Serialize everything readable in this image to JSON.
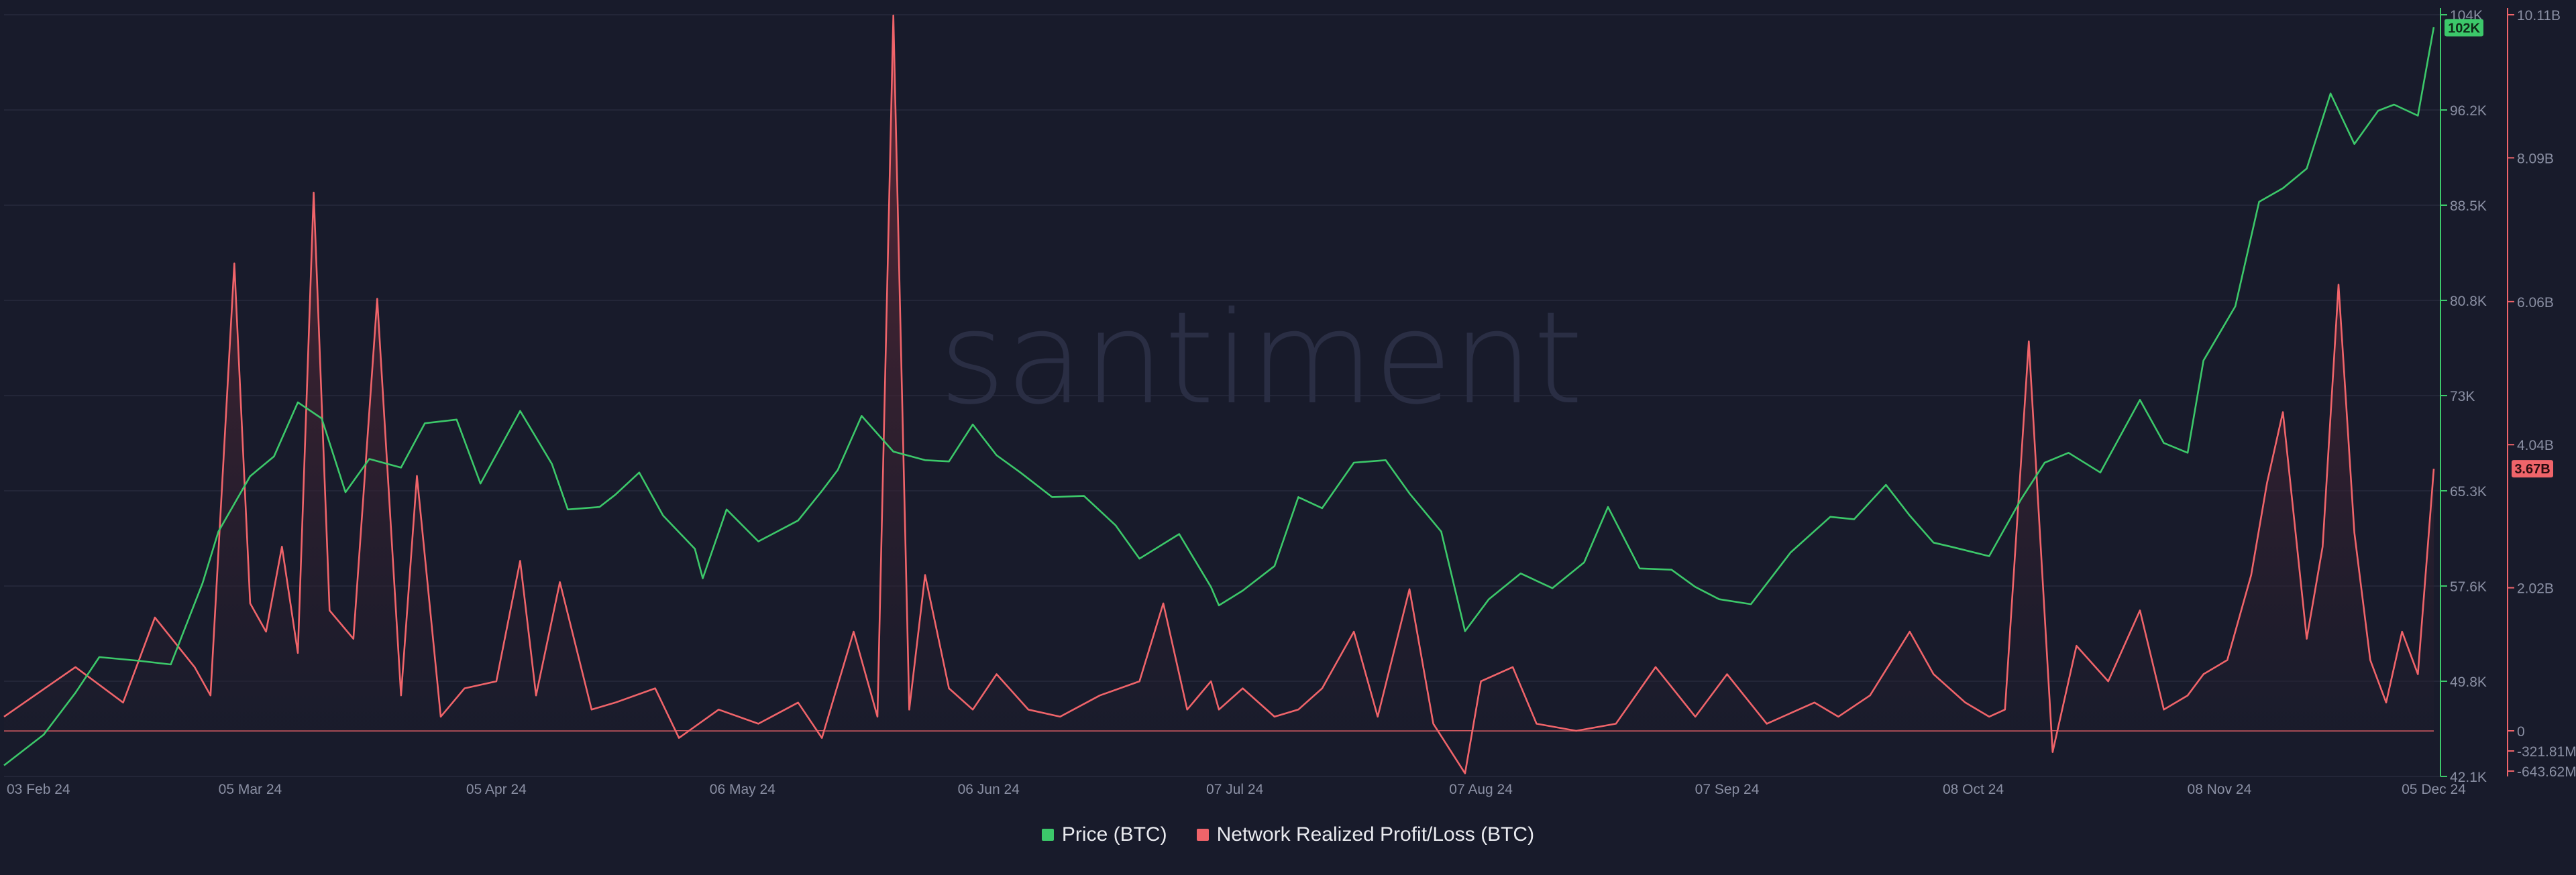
{
  "watermark": "santiment",
  "colors": {
    "background": "#181b2b",
    "price": "#3cc86a",
    "pnl": "#f0646a",
    "pnl_fill_top": "#6b2b38",
    "axis_text": "#8a8fa3",
    "grid": "#232638"
  },
  "legend": {
    "price_label": "Price (BTC)",
    "pnl_label": "Network Realized Profit/Loss (BTC)"
  },
  "chart_data": {
    "type": "line",
    "x_ticks": [
      "03 Feb 24",
      "05 Mar 24",
      "05 Apr 24",
      "06 May 24",
      "06 Jun 24",
      "07 Jul 24",
      "07 Aug 24",
      "07 Sep 24",
      "08 Oct 24",
      "08 Nov 24",
      "05 Dec 24"
    ],
    "xlim": [
      "2024-02-03",
      "2024-12-05"
    ],
    "price_axis": {
      "ticks": [
        "104K",
        "96.2K",
        "88.5K",
        "80.8K",
        "73K",
        "65.3K",
        "57.6K",
        "49.8K",
        "42.1K"
      ],
      "ylim": [
        42100,
        104000
      ],
      "current_label": "102K"
    },
    "pnl_axis": {
      "ticks": [
        "10.11B",
        "8.09B",
        "6.06B",
        "4.04B",
        "2.02B",
        "0",
        "-321.81M",
        "-643.62M"
      ],
      "ylim": [
        -643620000,
        10110000000
      ],
      "current_label": "3.67B"
    },
    "series": [
      {
        "name": "Price (BTC)",
        "axis": "price",
        "x": [
          "2024-02-03",
          "2024-02-08",
          "2024-02-12",
          "2024-02-15",
          "2024-02-20",
          "2024-02-24",
          "2024-02-28",
          "2024-03-01",
          "2024-03-05",
          "2024-03-08",
          "2024-03-11",
          "2024-03-14",
          "2024-03-17",
          "2024-03-20",
          "2024-03-24",
          "2024-03-27",
          "2024-03-31",
          "2024-04-03",
          "2024-04-08",
          "2024-04-12",
          "2024-04-14",
          "2024-04-18",
          "2024-04-20",
          "2024-04-23",
          "2024-04-26",
          "2024-04-30",
          "2024-05-01",
          "2024-05-04",
          "2024-05-08",
          "2024-05-13",
          "2024-05-16",
          "2024-05-18",
          "2024-05-21",
          "2024-05-25",
          "2024-05-29",
          "2024-06-01",
          "2024-06-04",
          "2024-06-07",
          "2024-06-10",
          "2024-06-14",
          "2024-06-18",
          "2024-06-22",
          "2024-06-25",
          "2024-06-30",
          "2024-07-04",
          "2024-07-05",
          "2024-07-08",
          "2024-07-12",
          "2024-07-15",
          "2024-07-18",
          "2024-07-22",
          "2024-07-26",
          "2024-07-29",
          "2024-08-02",
          "2024-08-05",
          "2024-08-08",
          "2024-08-12",
          "2024-08-16",
          "2024-08-20",
          "2024-08-23",
          "2024-08-27",
          "2024-08-31",
          "2024-09-03",
          "2024-09-06",
          "2024-09-10",
          "2024-09-15",
          "2024-09-20",
          "2024-09-23",
          "2024-09-27",
          "2024-09-30",
          "2024-10-03",
          "2024-10-05",
          "2024-10-10",
          "2024-10-14",
          "2024-10-17",
          "2024-10-20",
          "2024-10-24",
          "2024-10-29",
          "2024-11-01",
          "2024-11-04",
          "2024-11-06",
          "2024-11-10",
          "2024-11-13",
          "2024-11-16",
          "2024-11-19",
          "2024-11-22",
          "2024-11-25",
          "2024-11-28",
          "2024-11-30",
          "2024-12-03",
          "2024-12-05"
        ],
        "values": [
          43000,
          45500,
          48900,
          51800,
          51500,
          51200,
          57800,
          62000,
          66500,
          68100,
          72500,
          71200,
          65200,
          67900,
          67200,
          70800,
          71100,
          65900,
          71800,
          67500,
          63800,
          64000,
          65000,
          66800,
          63300,
          60600,
          58200,
          63800,
          61200,
          62900,
          65300,
          67000,
          71400,
          68500,
          67800,
          67700,
          70700,
          68200,
          66800,
          64800,
          64900,
          62500,
          59800,
          61800,
          57500,
          56000,
          57200,
          59200,
          64800,
          63900,
          67600,
          67800,
          65100,
          62000,
          53900,
          56500,
          58600,
          57400,
          59500,
          64000,
          59000,
          58900,
          57500,
          56500,
          56100,
          60300,
          63200,
          63000,
          65800,
          63300,
          61100,
          60800,
          60000,
          64600,
          67600,
          68400,
          66800,
          72700,
          69200,
          68400,
          75900,
          80300,
          88800,
          89900,
          91500,
          97600,
          93500,
          96200,
          96700,
          95800,
          103000
        ]
      },
      {
        "name": "Network Realized Profit/Loss (BTC)",
        "axis": "pnl",
        "x": [
          "2024-02-03",
          "2024-02-12",
          "2024-02-18",
          "2024-02-22",
          "2024-02-27",
          "2024-02-29",
          "2024-03-03",
          "2024-03-05",
          "2024-03-07",
          "2024-03-09",
          "2024-03-11",
          "2024-03-13",
          "2024-03-15",
          "2024-03-18",
          "2024-03-21",
          "2024-03-24",
          "2024-03-26",
          "2024-03-29",
          "2024-04-01",
          "2024-04-05",
          "2024-04-08",
          "2024-04-10",
          "2024-04-13",
          "2024-04-17",
          "2024-04-20",
          "2024-04-25",
          "2024-04-28",
          "2024-05-03",
          "2024-05-08",
          "2024-05-13",
          "2024-05-16",
          "2024-05-20",
          "2024-05-23",
          "2024-05-25",
          "2024-05-27",
          "2024-05-29",
          "2024-06-01",
          "2024-06-04",
          "2024-06-07",
          "2024-06-11",
          "2024-06-15",
          "2024-06-20",
          "2024-06-25",
          "2024-06-28",
          "2024-07-01",
          "2024-07-04",
          "2024-07-05",
          "2024-07-08",
          "2024-07-12",
          "2024-07-15",
          "2024-07-18",
          "2024-07-22",
          "2024-07-25",
          "2024-07-29",
          "2024-08-01",
          "2024-08-05",
          "2024-08-07",
          "2024-08-11",
          "2024-08-14",
          "2024-08-19",
          "2024-08-24",
          "2024-08-29",
          "2024-09-03",
          "2024-09-07",
          "2024-09-12",
          "2024-09-18",
          "2024-09-21",
          "2024-09-25",
          "2024-09-30",
          "2024-10-03",
          "2024-10-07",
          "2024-10-10",
          "2024-10-12",
          "2024-10-15",
          "2024-10-18",
          "2024-10-21",
          "2024-10-25",
          "2024-10-29",
          "2024-11-01",
          "2024-11-04",
          "2024-11-06",
          "2024-11-09",
          "2024-11-12",
          "2024-11-14",
          "2024-11-16",
          "2024-11-19",
          "2024-11-21",
          "2024-11-23",
          "2024-11-25",
          "2024-11-27",
          "2024-11-29",
          "2024-12-01",
          "2024-12-03",
          "2024-12-05"
        ],
        "values": [
          0.2,
          0.9,
          0.4,
          1.6,
          0.9,
          0.5,
          6.6,
          1.8,
          1.4,
          2.6,
          1.1,
          7.6,
          1.7,
          1.3,
          6.1,
          0.5,
          3.6,
          0.2,
          0.6,
          0.7,
          2.4,
          0.5,
          2.1,
          0.3,
          0.4,
          0.6,
          -0.1,
          0.3,
          0.1,
          0.4,
          -0.1,
          1.4,
          0.2,
          10.1,
          0.3,
          2.2,
          0.6,
          0.3,
          0.8,
          0.3,
          0.2,
          0.5,
          0.7,
          1.8,
          0.3,
          0.7,
          0.3,
          0.6,
          0.2,
          0.3,
          0.6,
          1.4,
          0.2,
          2.0,
          0.1,
          -0.6,
          0.7,
          0.9,
          0.1,
          0.0,
          0.1,
          0.9,
          0.2,
          0.8,
          0.1,
          0.4,
          0.2,
          0.5,
          1.4,
          0.8,
          0.4,
          0.2,
          0.3,
          5.5,
          -0.3,
          1.2,
          0.7,
          1.7,
          0.3,
          0.5,
          0.8,
          1.0,
          2.2,
          3.5,
          4.5,
          1.3,
          2.6,
          6.3,
          2.8,
          1.0,
          0.4,
          1.4,
          0.8,
          3.7
        ]
      }
    ]
  }
}
